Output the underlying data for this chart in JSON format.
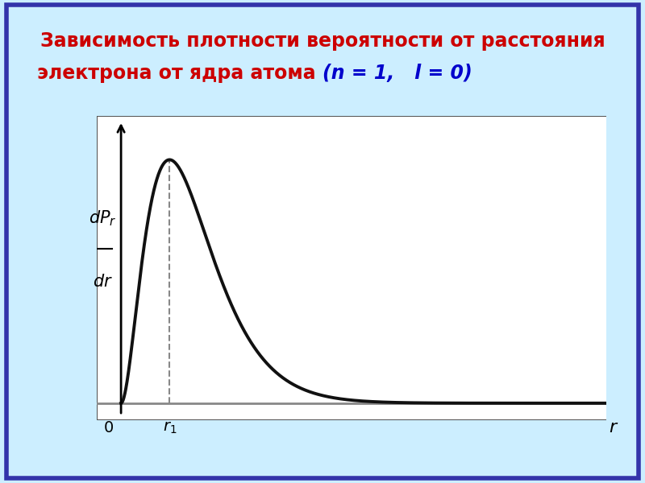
{
  "title_line1": "Зависимость плотности вероятности от расстояния",
  "title_line2_normal": "электрона от ядра атома ",
  "title_line2_colored": "(n = 1,   l = 0)",
  "title_fontsize": 17,
  "title_color": "#cc0000",
  "background_color": "#cceeff",
  "plot_bg_color": "#ffffff",
  "border_color": "#3333aa",
  "curve_color": "#111111",
  "curve_linewidth": 2.8,
  "axis_color": "#888888",
  "dashed_color": "#888888",
  "r_max": 10.0,
  "figsize": [
    8.0,
    6.0
  ],
  "dpi": 100
}
